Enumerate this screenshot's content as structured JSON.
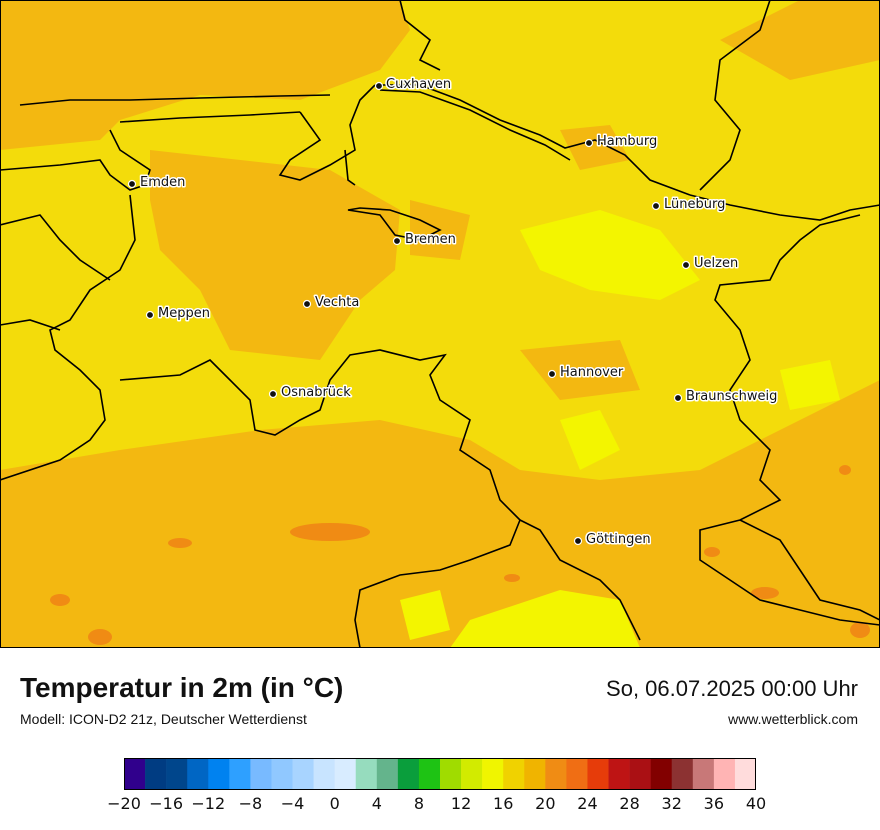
{
  "map": {
    "cities": [
      {
        "name": "Cuxhaven"
      },
      {
        "name": "Hamburg"
      },
      {
        "name": "Emden"
      },
      {
        "name": "Lüneburg"
      },
      {
        "name": "Bremen"
      },
      {
        "name": "Uelzen"
      },
      {
        "name": "Vechta"
      },
      {
        "name": "Meppen"
      },
      {
        "name": "Hannover"
      },
      {
        "name": "Osnabrück"
      },
      {
        "name": "Braunschweig"
      },
      {
        "name": "Göttingen"
      }
    ],
    "colors": {
      "base_yellow": "#f3dc0b",
      "warm_orange": "#f3b811",
      "bright_yellow": "#f3f500",
      "hot_orange": "#f08b14",
      "sea_orange": "#f1b60f",
      "border": "#000000"
    }
  },
  "header": {
    "title": "Temperatur in 2m (in °C)",
    "subtitle": "Modell: ICON-D2 21z, Deutscher Wetterdienst",
    "datetime": "So, 06.07.2025 00:00 Uhr",
    "website": "www.wetterblick.com"
  },
  "legend": {
    "ticks": [
      "−20",
      "−16",
      "−12",
      "−8",
      "−4",
      "0",
      "4",
      "8",
      "12",
      "16",
      "20",
      "24",
      "28",
      "32",
      "36",
      "40"
    ],
    "colors": [
      "#30008c",
      "#003c82",
      "#00468c",
      "#0066c4",
      "#0082f0",
      "#2ea0ff",
      "#78baff",
      "#90c8ff",
      "#a8d4ff",
      "#c8e4ff",
      "#d8ecff",
      "#96dcbe",
      "#64b48c",
      "#0a9e3c",
      "#1ec314",
      "#a0dc00",
      "#d2eb00",
      "#f0f500",
      "#f0d200",
      "#f0b400",
      "#f08c14",
      "#f06e14",
      "#e63c0a",
      "#be1414",
      "#aa1014",
      "#820000",
      "#8c3232",
      "#c87878",
      "#ffb4b4",
      "#ffdcdc"
    ]
  }
}
